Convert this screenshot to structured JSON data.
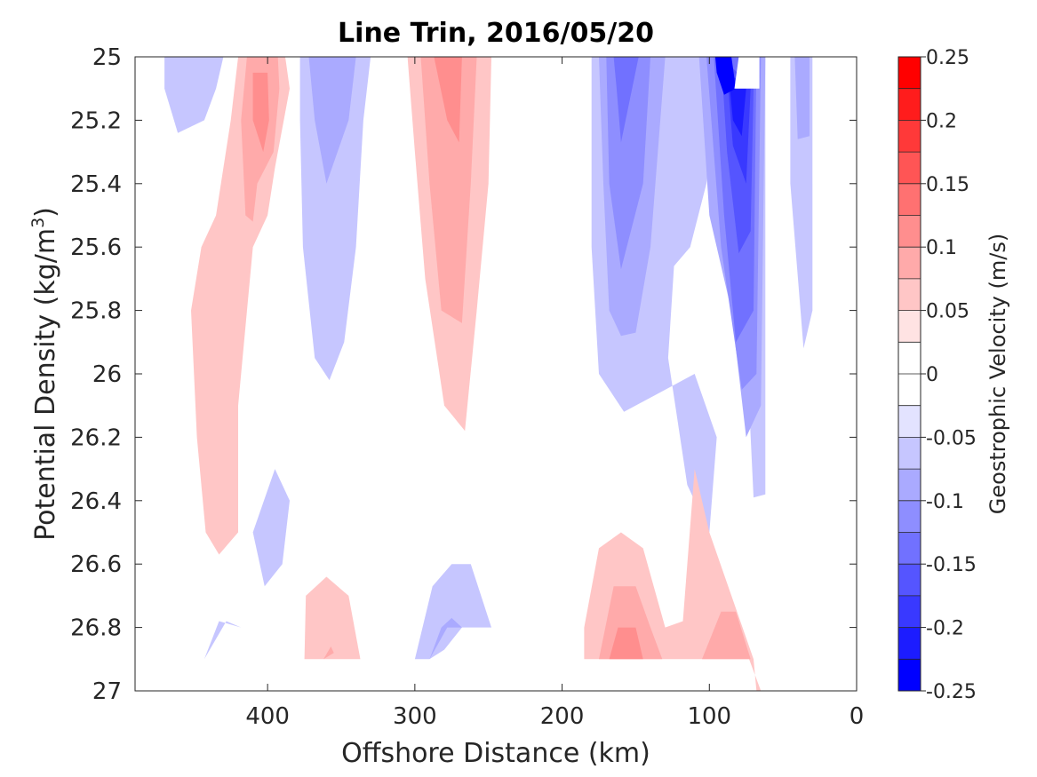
{
  "chart_data": {
    "type": "contourf",
    "title": "Line Trin, 2016/05/20",
    "xlabel": "Offshore Distance (km)",
    "ylabel_main": "Potential Density (kg/m",
    "ylabel_sup": "3",
    "ylabel_end": ")",
    "xlim": [
      490,
      0
    ],
    "ylim": [
      25,
      27
    ],
    "x_reversed": true,
    "y_reversed": true,
    "xticks": [
      {
        "value": 400,
        "label": "400"
      },
      {
        "value": 300,
        "label": "300"
      },
      {
        "value": 200,
        "label": "200"
      },
      {
        "value": 100,
        "label": "100"
      },
      {
        "value": 0,
        "label": "0"
      }
    ],
    "yticks": [
      {
        "value": 25,
        "label": "25"
      },
      {
        "value": 25.2,
        "label": "25.2"
      },
      {
        "value": 25.4,
        "label": "25.4"
      },
      {
        "value": 25.6,
        "label": "25.6"
      },
      {
        "value": 25.8,
        "label": "25.8"
      },
      {
        "value": 26,
        "label": "26"
      },
      {
        "value": 26.2,
        "label": "26.2"
      },
      {
        "value": 26.4,
        "label": "26.4"
      },
      {
        "value": 26.6,
        "label": "26.6"
      },
      {
        "value": 26.8,
        "label": "26.8"
      },
      {
        "value": 27,
        "label": "27"
      }
    ],
    "colorbar": {
      "label": "Geostrophic Velocity (m/s)",
      "range": [
        -0.25,
        0.25
      ],
      "ticks": [
        {
          "value": 0.25,
          "label": "0.25"
        },
        {
          "value": 0.2,
          "label": "0.2"
        },
        {
          "value": 0.15,
          "label": "0.15"
        },
        {
          "value": 0.1,
          "label": "0.1"
        },
        {
          "value": 0.05,
          "label": "0.05"
        },
        {
          "value": 0,
          "label": "0"
        },
        {
          "value": -0.05,
          "label": "-0.05"
        },
        {
          "value": -0.1,
          "label": "-0.1"
        },
        {
          "value": -0.15,
          "label": "-0.15"
        },
        {
          "value": -0.2,
          "label": "-0.2"
        },
        {
          "value": -0.25,
          "label": "-0.25"
        }
      ],
      "bands": [
        {
          "from": 0.225,
          "to": 0.25,
          "color": "#ff0000"
        },
        {
          "from": 0.2,
          "to": 0.225,
          "color": "#ff1c1c"
        },
        {
          "from": 0.175,
          "to": 0.2,
          "color": "#ff3939"
        },
        {
          "from": 0.15,
          "to": 0.175,
          "color": "#ff5555"
        },
        {
          "from": 0.125,
          "to": 0.15,
          "color": "#ff7171"
        },
        {
          "from": 0.1,
          "to": 0.125,
          "color": "#ff8e8e"
        },
        {
          "from": 0.075,
          "to": 0.1,
          "color": "#ffaaaa"
        },
        {
          "from": 0.05,
          "to": 0.075,
          "color": "#ffc6c6"
        },
        {
          "from": 0.025,
          "to": 0.05,
          "color": "#ffe3e3"
        },
        {
          "from": 0,
          "to": 0.025,
          "color": "#ffffff"
        },
        {
          "from": -0.025,
          "to": 0,
          "color": "#ffffff"
        },
        {
          "from": -0.05,
          "to": -0.025,
          "color": "#e3e3ff"
        },
        {
          "from": -0.075,
          "to": -0.05,
          "color": "#c6c6ff"
        },
        {
          "from": -0.1,
          "to": -0.075,
          "color": "#aaaaff"
        },
        {
          "from": -0.125,
          "to": -0.1,
          "color": "#8e8eff"
        },
        {
          "from": -0.15,
          "to": -0.125,
          "color": "#7171ff"
        },
        {
          "from": -0.175,
          "to": -0.15,
          "color": "#5555ff"
        },
        {
          "from": -0.2,
          "to": -0.175,
          "color": "#3939ff"
        },
        {
          "from": -0.225,
          "to": -0.2,
          "color": "#1c1cff"
        },
        {
          "from": -0.25,
          "to": -0.225,
          "color": "#0000ff"
        }
      ]
    },
    "regions": [
      {
        "name": "blue-west-top",
        "level": -0.05,
        "points": [
          [
            470,
            25
          ],
          [
            430,
            25
          ],
          [
            435,
            25.1
          ],
          [
            443,
            25.2
          ],
          [
            461,
            25.24
          ],
          [
            470,
            25.1
          ]
        ]
      },
      {
        "name": "red-400-outer",
        "level": 0.05,
        "points": [
          [
            408,
            25
          ],
          [
            388,
            25
          ],
          [
            385,
            25.1
          ],
          [
            395,
            25.35
          ],
          [
            400,
            25.5
          ],
          [
            410,
            25.6
          ],
          [
            420,
            26.1
          ],
          [
            420,
            26.5
          ],
          [
            433,
            26.57
          ],
          [
            442,
            26.5
          ],
          [
            448,
            26.2
          ],
          [
            452,
            25.8
          ],
          [
            445,
            25.6
          ],
          [
            435,
            25.5
          ],
          [
            425,
            25.2
          ],
          [
            420,
            25
          ]
        ]
      },
      {
        "name": "red-400-mid",
        "level": 0.075,
        "points": [
          [
            414,
            25
          ],
          [
            393,
            25
          ],
          [
            392,
            25.1
          ],
          [
            396,
            25.3
          ],
          [
            407,
            25.4
          ],
          [
            410,
            25.52
          ],
          [
            415,
            25.5
          ],
          [
            418,
            25.2
          ]
        ]
      },
      {
        "name": "red-400-core",
        "level": 0.1,
        "points": [
          [
            410,
            25.05
          ],
          [
            400,
            25.05
          ],
          [
            399,
            25.2
          ],
          [
            403,
            25.3
          ],
          [
            410,
            25.2
          ]
        ]
      },
      {
        "name": "blue-360-outer",
        "level": -0.05,
        "points": [
          [
            378,
            25
          ],
          [
            330,
            25
          ],
          [
            335,
            25.2
          ],
          [
            340,
            25.6
          ],
          [
            348,
            25.9
          ],
          [
            358,
            26.02
          ],
          [
            368,
            25.95
          ],
          [
            376,
            25.6
          ],
          [
            378,
            25.2
          ]
        ]
      },
      {
        "name": "blue-360-core",
        "level": -0.075,
        "points": [
          [
            372,
            25
          ],
          [
            340,
            25
          ],
          [
            345,
            25.2
          ],
          [
            360,
            25.4
          ],
          [
            368,
            25.2
          ]
        ]
      },
      {
        "name": "red-280-outer",
        "level": 0.05,
        "points": [
          [
            305,
            25
          ],
          [
            248,
            25
          ],
          [
            250,
            25.4
          ],
          [
            258,
            25.8
          ],
          [
            266,
            26.18
          ],
          [
            280,
            26.1
          ],
          [
            293,
            25.7
          ],
          [
            300,
            25.3
          ]
        ]
      },
      {
        "name": "red-280-mid",
        "level": 0.075,
        "points": [
          [
            296,
            25
          ],
          [
            258,
            25
          ],
          [
            262,
            25.4
          ],
          [
            268,
            25.84
          ],
          [
            282,
            25.8
          ],
          [
            290,
            25.4
          ]
        ]
      },
      {
        "name": "red-280-core",
        "level": 0.1,
        "points": [
          [
            287,
            25
          ],
          [
            268,
            25
          ],
          [
            270,
            25.27
          ],
          [
            278,
            25.2
          ]
        ]
      },
      {
        "name": "blue-160-outer",
        "level": -0.05,
        "points": [
          [
            180,
            25
          ],
          [
            90,
            25
          ],
          [
            102,
            25.4
          ],
          [
            113,
            25.6
          ],
          [
            124,
            25.66
          ],
          [
            128,
            25.95
          ],
          [
            115,
            26.35
          ],
          [
            100,
            26.5
          ],
          [
            95,
            26.2
          ],
          [
            110,
            26.0
          ],
          [
            130,
            26.05
          ],
          [
            158,
            26.12
          ],
          [
            175,
            26.0
          ],
          [
            180,
            25.6
          ]
        ]
      },
      {
        "name": "blue-160-b2",
        "level": -0.075,
        "points": [
          [
            175,
            25
          ],
          [
            130,
            25
          ],
          [
            140,
            25.6
          ],
          [
            150,
            25.87
          ],
          [
            160,
            25.88
          ],
          [
            168,
            25.8
          ],
          [
            172,
            25.4
          ]
        ]
      },
      {
        "name": "blue-160-b3",
        "level": -0.1,
        "points": [
          [
            170,
            25
          ],
          [
            140,
            25
          ],
          [
            145,
            25.4
          ],
          [
            160,
            25.67
          ],
          [
            168,
            25.4
          ]
        ]
      },
      {
        "name": "blue-160-b4",
        "level": -0.125,
        "points": [
          [
            165,
            25
          ],
          [
            148,
            25
          ],
          [
            160,
            25.27
          ],
          [
            163,
            25.1
          ]
        ]
      },
      {
        "name": "blue-90-outer",
        "level": -0.05,
        "points": [
          [
            120,
            25
          ],
          [
            62,
            25
          ],
          [
            62,
            26.38
          ],
          [
            70,
            26.39
          ],
          [
            75,
            25.9
          ],
          [
            72,
            25.6
          ]
        ]
      },
      {
        "name": "blue-90-b2",
        "level": -0.075,
        "points": [
          [
            107,
            25
          ],
          [
            62,
            25
          ],
          [
            65,
            26.1
          ],
          [
            75,
            26.2
          ],
          [
            85,
            25.8
          ],
          [
            100,
            25.5
          ]
        ]
      },
      {
        "name": "blue-90-b3",
        "level": -0.1,
        "points": [
          [
            102,
            25
          ],
          [
            65,
            25
          ],
          [
            68,
            26.0
          ],
          [
            78,
            26.05
          ],
          [
            92,
            25.6
          ]
        ]
      },
      {
        "name": "blue-90-b4",
        "level": -0.125,
        "points": [
          [
            97,
            25
          ],
          [
            68,
            25
          ],
          [
            70,
            25.8
          ],
          [
            82,
            25.9
          ],
          [
            90,
            25.5
          ]
        ]
      },
      {
        "name": "blue-90-b5",
        "level": -0.15,
        "points": [
          [
            92,
            25
          ],
          [
            70,
            25.1
          ],
          [
            72,
            25.55
          ],
          [
            80,
            25.62
          ],
          [
            88,
            25.3
          ]
        ]
      },
      {
        "name": "blue-90-b6",
        "level": -0.175,
        "points": [
          [
            88,
            25.05
          ],
          [
            72,
            25.1
          ],
          [
            75,
            25.4
          ],
          [
            84,
            25.28
          ]
        ]
      },
      {
        "name": "blue-90-b7",
        "level": -0.2,
        "points": [
          [
            86,
            25.1
          ],
          [
            75,
            25.1
          ],
          [
            78,
            25.25
          ],
          [
            84,
            25.2
          ]
        ]
      },
      {
        "name": "blue-90-b8",
        "level": -0.225,
        "points": [
          [
            96,
            25
          ],
          [
            85,
            25
          ],
          [
            82,
            25.1
          ],
          [
            90,
            25.12
          ],
          [
            95,
            25.05
          ]
        ]
      },
      {
        "name": "white-notch",
        "level": 0,
        "points": [
          [
            80,
            25
          ],
          [
            66,
            25
          ],
          [
            66,
            25.1
          ],
          [
            83,
            25.1
          ]
        ]
      },
      {
        "name": "blue-40-outer",
        "level": -0.05,
        "points": [
          [
            45,
            25
          ],
          [
            30,
            25
          ],
          [
            30,
            25.8
          ],
          [
            36,
            25.92
          ],
          [
            45,
            25.4
          ]
        ]
      },
      {
        "name": "blue-40-core",
        "level": -0.075,
        "points": [
          [
            42,
            25
          ],
          [
            32,
            25
          ],
          [
            32,
            25.25
          ],
          [
            40,
            25.26
          ]
        ]
      },
      {
        "name": "blue-390-deep",
        "level": -0.05,
        "points": [
          [
            395,
            26.3
          ],
          [
            385,
            26.4
          ],
          [
            390,
            26.6
          ],
          [
            402,
            26.67
          ],
          [
            410,
            26.5
          ]
        ]
      },
      {
        "name": "blue-440-small",
        "level": -0.05,
        "points": [
          [
            443,
            26.9
          ],
          [
            433,
            26.78
          ],
          [
            418,
            26.8
          ],
          [
            428,
            26.78
          ]
        ]
      },
      {
        "name": "red-360-deep",
        "level": 0.05,
        "points": [
          [
            375,
            26.9
          ],
          [
            374,
            26.7
          ],
          [
            360,
            26.64
          ],
          [
            345,
            26.7
          ],
          [
            337,
            26.9
          ]
        ]
      },
      {
        "name": "red-360-speck",
        "level": 0.075,
        "points": [
          [
            362,
            26.9
          ],
          [
            355,
            26.88
          ],
          [
            357,
            26.86
          ]
        ]
      },
      {
        "name": "blue-280-deep",
        "level": -0.05,
        "points": [
          [
            300,
            26.9
          ],
          [
            288,
            26.67
          ],
          [
            275,
            26.6
          ],
          [
            262,
            26.6
          ],
          [
            248,
            26.8
          ],
          [
            268,
            26.8
          ],
          [
            280,
            26.87
          ],
          [
            290,
            26.9
          ]
        ]
      },
      {
        "name": "blue-280-deep-core",
        "level": -0.075,
        "points": [
          [
            290,
            26.9
          ],
          [
            278,
            26.8
          ],
          [
            268,
            26.8
          ],
          [
            275,
            26.77
          ],
          [
            282,
            26.8
          ]
        ]
      },
      {
        "name": "red-150-deep",
        "level": 0.05,
        "points": [
          [
            185,
            26.8
          ],
          [
            175,
            26.55
          ],
          [
            160,
            26.5
          ],
          [
            145,
            26.55
          ],
          [
            130,
            26.8
          ],
          [
            118,
            26.78
          ],
          [
            110,
            26.3
          ],
          [
            100,
            26.5
          ],
          [
            70,
            26.9
          ],
          [
            68,
            27
          ],
          [
            65,
            27
          ],
          [
            73,
            26.9
          ],
          [
            185,
            26.9
          ]
        ]
      },
      {
        "name": "red-150-deep-mid",
        "level": 0.075,
        "points": [
          [
            175,
            26.9
          ],
          [
            165,
            26.67
          ],
          [
            150,
            26.67
          ],
          [
            140,
            26.8
          ],
          [
            132,
            26.9
          ]
        ]
      },
      {
        "name": "red-150-deep-core",
        "level": 0.1,
        "points": [
          [
            168,
            26.9
          ],
          [
            162,
            26.8
          ],
          [
            150,
            26.8
          ],
          [
            145,
            26.9
          ]
        ]
      },
      {
        "name": "red-80-deep-mid",
        "level": 0.075,
        "points": [
          [
            105,
            26.9
          ],
          [
            92,
            26.75
          ],
          [
            82,
            26.75
          ],
          [
            72,
            26.9
          ]
        ]
      }
    ]
  }
}
